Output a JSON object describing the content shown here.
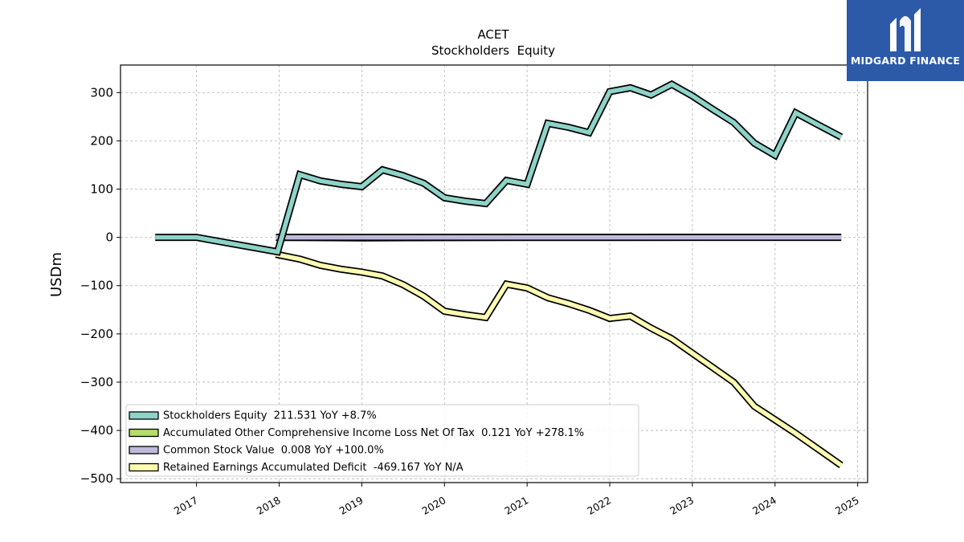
{
  "brand": {
    "name": "MIDGARD FINANCE",
    "logo_icon": "midgard-m-logo-icon",
    "background_color": "#2d5aa8"
  },
  "chart_data": {
    "type": "line",
    "title": "ACET",
    "subtitle": "Stockholders  Equity",
    "xlabel": "",
    "ylabel": "USDm",
    "x_ticks": [
      "2017",
      "2018",
      "2019",
      "2020",
      "2021",
      "2022",
      "2023",
      "2024",
      "2025"
    ],
    "y_ticks": [
      "300",
      "200",
      "100",
      "0",
      "−100",
      "−200",
      "−300",
      "−400",
      "−500"
    ],
    "xlim": [
      2016.08,
      2025.12
    ],
    "ylim": [
      -508,
      357
    ],
    "grid": true,
    "legend_position": "lower-left",
    "series": [
      {
        "name": "Stockholders Equity  211.531 YoY +8.7%",
        "color": "#8dd3c7",
        "points": [
          [
            2016.5,
            0
          ],
          [
            2017.0,
            0
          ],
          [
            2017.98,
            -30
          ],
          [
            2018.25,
            130
          ],
          [
            2018.5,
            117
          ],
          [
            2018.75,
            110
          ],
          [
            2019.0,
            105
          ],
          [
            2019.25,
            140
          ],
          [
            2019.5,
            128
          ],
          [
            2019.75,
            112
          ],
          [
            2020.0,
            82
          ],
          [
            2020.25,
            75
          ],
          [
            2020.5,
            70
          ],
          [
            2020.75,
            118
          ],
          [
            2021.0,
            110
          ],
          [
            2021.25,
            236
          ],
          [
            2021.5,
            228
          ],
          [
            2021.75,
            217
          ],
          [
            2022.0,
            302
          ],
          [
            2022.25,
            310
          ],
          [
            2022.5,
            295
          ],
          [
            2022.75,
            317
          ],
          [
            2023.0,
            293
          ],
          [
            2023.25,
            265
          ],
          [
            2023.5,
            238
          ],
          [
            2023.75,
            195
          ],
          [
            2024.0,
            170
          ],
          [
            2024.25,
            258
          ],
          [
            2024.5,
            235
          ],
          [
            2024.8,
            208
          ]
        ]
      },
      {
        "name": "Accumulated Other Comprehensive Income Loss Net Of Tax  0.121 YoY +278.1%",
        "color": "#b3de69",
        "points": [
          [
            2018.0,
            0
          ],
          [
            2019.0,
            -1
          ],
          [
            2020.0,
            -0.5
          ],
          [
            2021.0,
            0
          ],
          [
            2024.8,
            0.121
          ]
        ]
      },
      {
        "name": "Common Stock Value  0.008 YoY +100.0%",
        "color": "#bebada",
        "points": [
          [
            2017.96,
            0
          ],
          [
            2019.0,
            0
          ],
          [
            2024.8,
            0
          ]
        ]
      },
      {
        "name": "Retained Earnings Accumulated Deficit  -469.167 YoY N/A",
        "color": "#ffffb3",
        "points": [
          [
            2017.96,
            -35
          ],
          [
            2018.25,
            -45
          ],
          [
            2018.5,
            -58
          ],
          [
            2018.75,
            -66
          ],
          [
            2019.0,
            -72
          ],
          [
            2019.25,
            -80
          ],
          [
            2019.5,
            -98
          ],
          [
            2019.75,
            -122
          ],
          [
            2020.0,
            -153
          ],
          [
            2020.25,
            -160
          ],
          [
            2020.5,
            -166
          ],
          [
            2020.75,
            -97
          ],
          [
            2021.0,
            -105
          ],
          [
            2021.25,
            -125
          ],
          [
            2021.5,
            -137
          ],
          [
            2021.75,
            -151
          ],
          [
            2022.0,
            -168
          ],
          [
            2022.25,
            -163
          ],
          [
            2022.5,
            -188
          ],
          [
            2022.75,
            -210
          ],
          [
            2023.0,
            -240
          ],
          [
            2023.25,
            -270
          ],
          [
            2023.5,
            -300
          ],
          [
            2023.75,
            -350
          ],
          [
            2024.0,
            -378
          ],
          [
            2024.25,
            -406
          ],
          [
            2024.5,
            -436
          ],
          [
            2024.8,
            -472
          ]
        ]
      }
    ]
  }
}
